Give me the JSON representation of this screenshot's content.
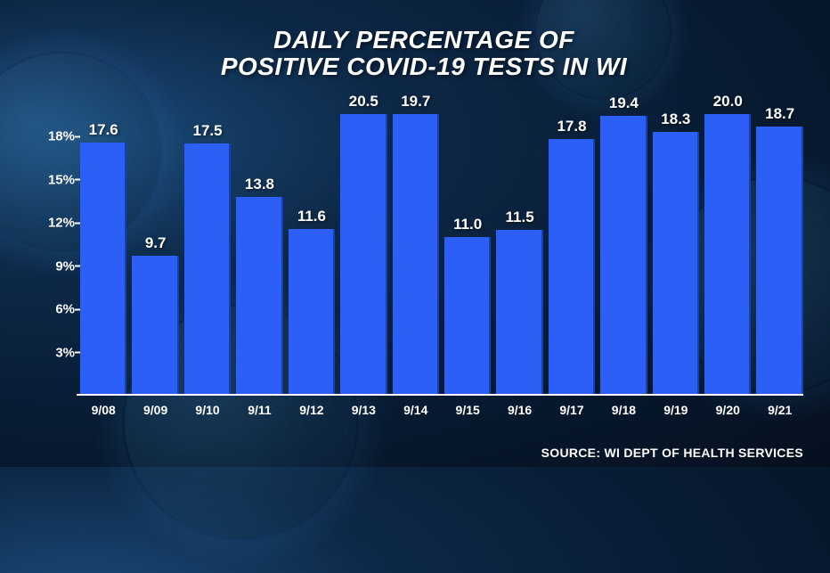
{
  "chart": {
    "type": "bar",
    "title_line1": "DAILY PERCENTAGE OF",
    "title_line2": "POSITIVE COVID-19 TESTS IN WI",
    "title_fontsize": 28,
    "title_color": "#ffffff",
    "categories": [
      "9/08",
      "9/09",
      "9/10",
      "9/11",
      "9/12",
      "9/13",
      "9/14",
      "9/15",
      "9/16",
      "9/17",
      "9/18",
      "9/19",
      "9/20",
      "9/21"
    ],
    "values": [
      17.6,
      9.7,
      17.5,
      13.8,
      11.6,
      20.5,
      19.7,
      11.0,
      11.5,
      17.8,
      19.4,
      18.3,
      20.0,
      18.7
    ],
    "value_labels": [
      "17.6",
      "9.7",
      "17.5",
      "13.8",
      "11.6",
      "20.5",
      "19.7",
      "11.0",
      "11.5",
      "17.8",
      "19.4",
      "18.3",
      "20.0",
      "18.7"
    ],
    "bar_color": "#2b5ff5",
    "bar_shadow_color": "#1040c0",
    "y_ticks": [
      3,
      6,
      9,
      12,
      15,
      18
    ],
    "y_tick_labels": [
      "3%",
      "6%",
      "9%",
      "12%",
      "15%",
      "18%"
    ],
    "ylim": [
      0,
      21
    ],
    "axis_color": "#ffffff",
    "label_fontsize": 15,
    "value_fontsize": 17,
    "x_label_fontsize": 14,
    "background_gradient": [
      "#1a4b7a",
      "#0d2847",
      "#081c33",
      "#05101f"
    ],
    "bar_gap": 6
  },
  "source": {
    "label": "SOURCE: WI DEPT OF HEALTH SERVICES",
    "color": "#ffffff",
    "fontsize": 14
  }
}
